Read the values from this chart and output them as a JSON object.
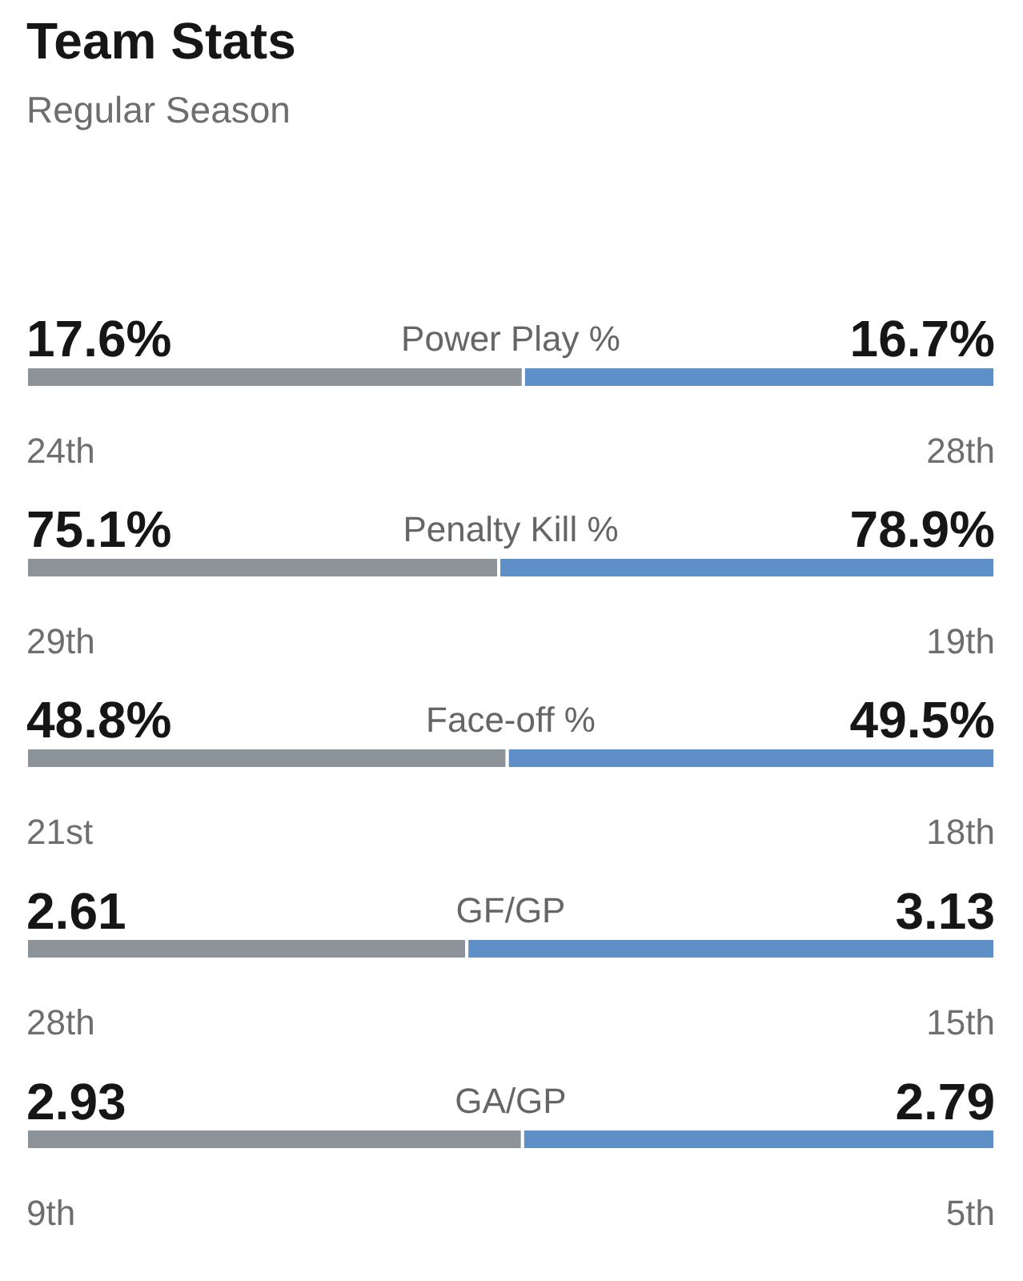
{
  "chart_data": [
    {
      "type": "bar",
      "orientation": "horizontal",
      "stacked": true,
      "title": "Team Stats",
      "subtitle": "Regular Season",
      "categories": [
        "Power Play %"
      ],
      "series": [
        {
          "color": "#8c9499",
          "values": [
            17.6
          ],
          "value_labels": [
            "17.6%"
          ]
        },
        {
          "color": "#5e8fc7",
          "values": [
            16.7
          ],
          "value_labels": [
            "16.7%"
          ]
        }
      ],
      "annotations": [
        "24th",
        "28th"
      ]
    },
    {
      "type": "bar",
      "orientation": "horizontal",
      "stacked": true,
      "categories": [
        "Penalty Kill %"
      ],
      "series": [
        {
          "color": "#8c9499",
          "values": [
            75.1
          ],
          "value_labels": [
            "75.1%"
          ]
        },
        {
          "color": "#5e8fc7",
          "values": [
            78.9
          ],
          "value_labels": [
            "78.9%"
          ]
        }
      ],
      "annotations": [
        "29th",
        "19th"
      ]
    },
    {
      "type": "bar",
      "orientation": "horizontal",
      "stacked": true,
      "categories": [
        "Face-off %"
      ],
      "series": [
        {
          "color": "#8c9499",
          "values": [
            48.8
          ],
          "value_labels": [
            "48.8%"
          ]
        },
        {
          "color": "#5e8fc7",
          "values": [
            49.5
          ],
          "value_labels": [
            "49.5%"
          ]
        }
      ],
      "annotations": [
        "21st",
        "18th"
      ]
    },
    {
      "type": "bar",
      "orientation": "horizontal",
      "stacked": true,
      "categories": [
        "GF/GP"
      ],
      "series": [
        {
          "color": "#8c9499",
          "values": [
            2.61
          ],
          "value_labels": [
            "2.61"
          ]
        },
        {
          "color": "#5e8fc7",
          "values": [
            3.13
          ],
          "value_labels": [
            "3.13"
          ]
        }
      ],
      "annotations": [
        "28th",
        "15th"
      ]
    },
    {
      "type": "bar",
      "orientation": "horizontal",
      "stacked": true,
      "categories": [
        "GA/GP"
      ],
      "series": [
        {
          "color": "#8c9499",
          "values": [
            2.93
          ],
          "value_labels": [
            "2.93"
          ]
        },
        {
          "color": "#5e8fc7",
          "values": [
            2.79
          ],
          "value_labels": [
            "2.79"
          ]
        }
      ],
      "annotations": [
        "9th",
        "5th"
      ]
    }
  ]
}
